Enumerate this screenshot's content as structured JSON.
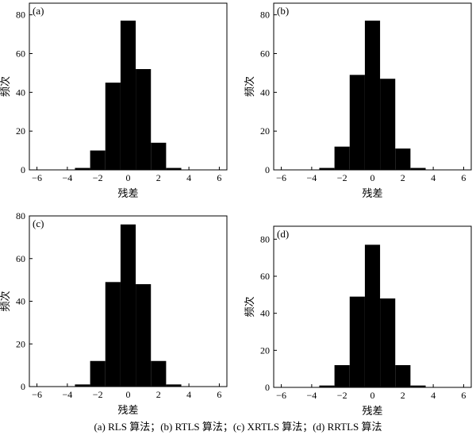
{
  "chart_data": [
    {
      "type": "bar",
      "panel_label": "(a)",
      "xlabel": "残差",
      "ylabel": "频次",
      "xlim": [
        -6.5,
        6.5
      ],
      "ylim": [
        0,
        86
      ],
      "xticks": [
        -6,
        -4,
        -2,
        0,
        2,
        4,
        6
      ],
      "yticks": [
        0,
        20,
        40,
        60,
        80
      ],
      "bin_edges": [
        -5.5,
        -4.5,
        -3.5,
        -2.5,
        -1.5,
        -0.5,
        0.5,
        1.5,
        2.5,
        3.5,
        4.5,
        5.5
      ],
      "values": [
        0,
        0,
        1,
        10,
        45,
        77,
        52,
        14,
        1,
        0,
        0
      ]
    },
    {
      "type": "bar",
      "panel_label": "(b)",
      "xlabel": "残差",
      "ylabel": "频次",
      "xlim": [
        -6.5,
        6.5
      ],
      "ylim": [
        0,
        86
      ],
      "xticks": [
        -6,
        -4,
        -2,
        0,
        2,
        4,
        6
      ],
      "yticks": [
        0,
        20,
        40,
        60,
        80
      ],
      "bin_edges": [
        -5.5,
        -4.5,
        -3.5,
        -2.5,
        -1.5,
        -0.5,
        0.5,
        1.5,
        2.5,
        3.5,
        4.5,
        5.5
      ],
      "values": [
        0,
        0,
        1,
        12,
        49,
        77,
        47,
        11,
        1,
        0,
        0
      ]
    },
    {
      "type": "bar",
      "panel_label": "(c)",
      "xlabel": "残差",
      "ylabel": "频次",
      "xlim": [
        -6.5,
        6.5
      ],
      "ylim": [
        0,
        80
      ],
      "xticks": [
        -6,
        -4,
        -2,
        0,
        2,
        4,
        6
      ],
      "yticks": [
        0,
        20,
        40,
        60,
        80
      ],
      "bin_edges": [
        -5.5,
        -4.5,
        -3.5,
        -2.5,
        -1.5,
        -0.5,
        0.5,
        1.5,
        2.5,
        3.5,
        4.5,
        5.5
      ],
      "values": [
        0,
        0,
        1,
        12,
        49,
        76,
        48,
        12,
        1,
        0,
        0
      ]
    },
    {
      "type": "bar",
      "panel_label": "(d)",
      "xlabel": "残差",
      "ylabel": "频次",
      "xlim": [
        -6.5,
        6.5
      ],
      "ylim": [
        0,
        87
      ],
      "xticks": [
        -6,
        -4,
        -2,
        0,
        2,
        4,
        6
      ],
      "yticks": [
        0,
        20,
        40,
        60,
        80
      ],
      "bin_edges": [
        -5.5,
        -4.5,
        -3.5,
        -2.5,
        -1.5,
        -0.5,
        0.5,
        1.5,
        2.5,
        3.5,
        4.5,
        5.5
      ],
      "values": [
        0,
        0,
        1,
        12,
        49,
        77,
        48,
        12,
        1,
        0,
        0
      ]
    }
  ],
  "caption": "(a) RLS 算法；(b) RTLS 算法；(c) XRTLS 算法；(d) RRTLS 算法"
}
